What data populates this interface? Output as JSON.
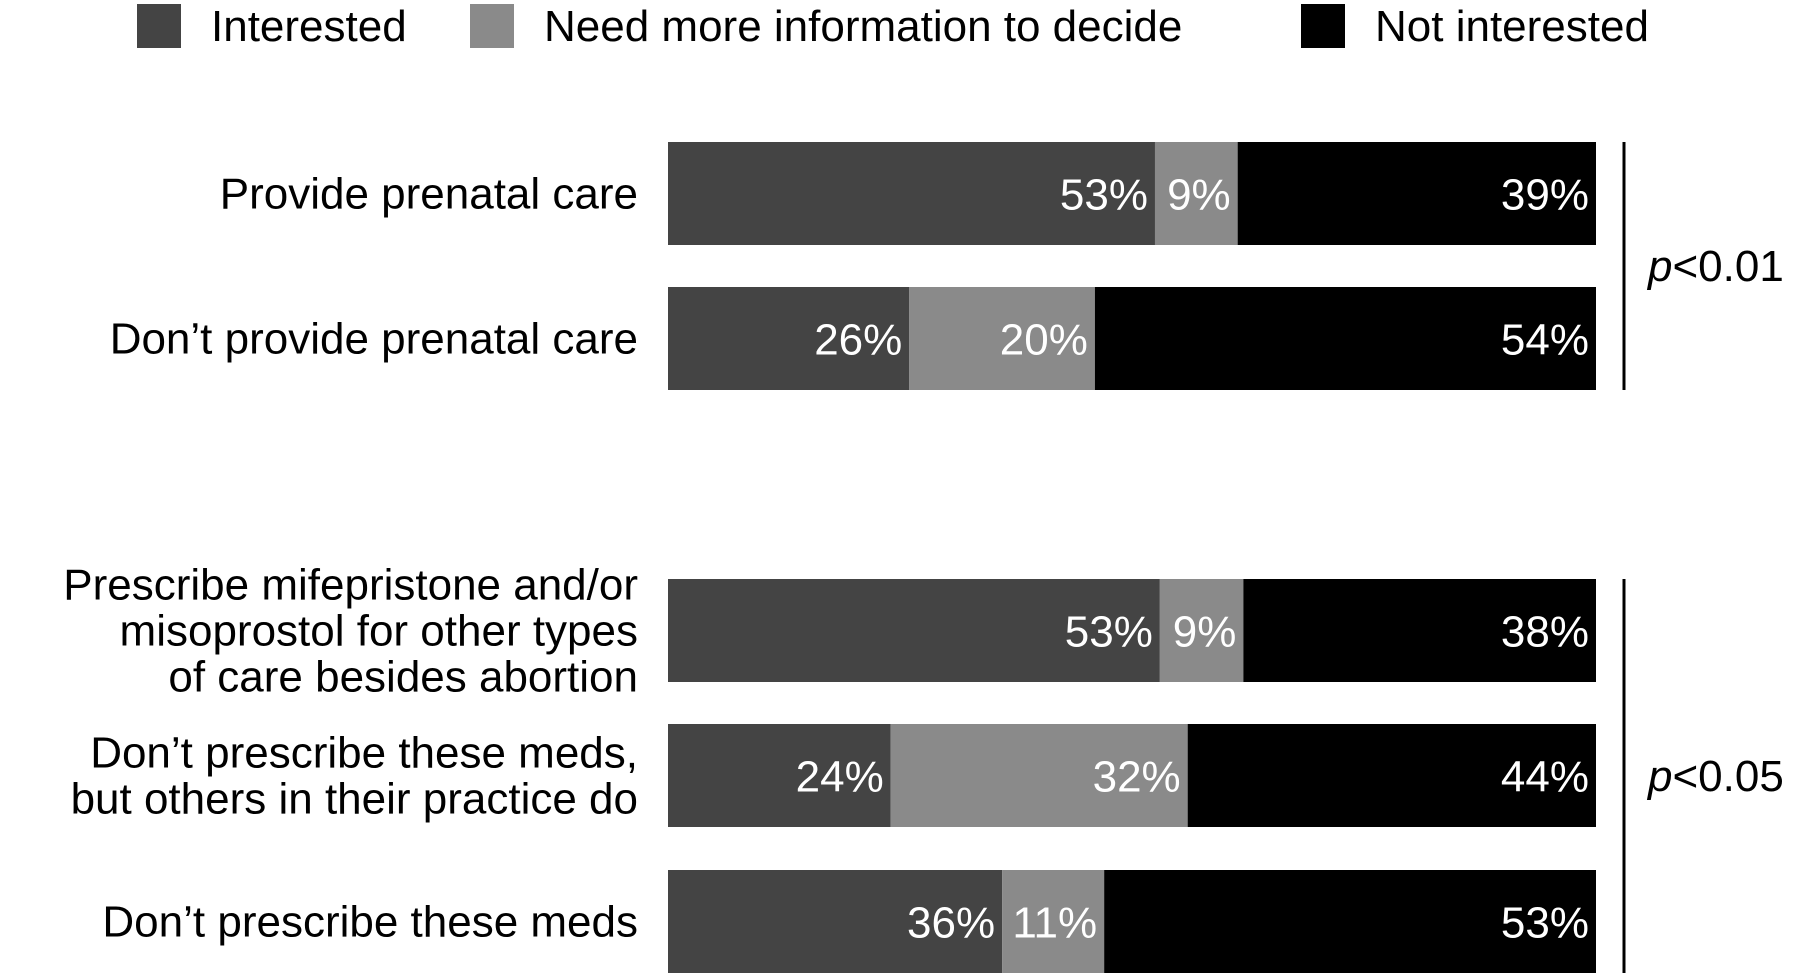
{
  "chart_data": {
    "type": "bar",
    "orientation": "horizontal",
    "stacked": true,
    "legend_position": "top",
    "grid": false,
    "xlim": [
      0,
      100
    ],
    "value_unit": "%",
    "colors": {
      "Interested": "#444444",
      "Need more information to decide": "#8a8a8a",
      "Not interested": "#000000"
    },
    "series": [
      {
        "name": "Interested",
        "values": [
          53,
          26,
          53,
          24,
          36
        ]
      },
      {
        "name": "Need more information to decide",
        "values": [
          9,
          20,
          9,
          32,
          11
        ]
      },
      {
        "name": "Not interested",
        "values": [
          39,
          54,
          38,
          44,
          53
        ]
      }
    ],
    "categories": [
      {
        "lines": [
          "Provide prenatal care"
        ]
      },
      {
        "lines": [
          "Don’t provide prenatal care"
        ]
      },
      {
        "lines": [
          "Prescribe mifepristone and/or",
          "misoprostol for other types",
          "of care besides abortion"
        ]
      },
      {
        "lines": [
          "Don’t prescribe these meds,",
          "but others in their practice do"
        ]
      },
      {
        "lines": [
          "Don’t prescribe these meds"
        ]
      }
    ],
    "groups": [
      {
        "categories": [
          0,
          1
        ],
        "p_italic": "p",
        "p_rest": "<0.01"
      },
      {
        "categories": [
          2,
          3,
          4
        ],
        "p_italic": "p",
        "p_rest": "<0.05"
      }
    ]
  }
}
